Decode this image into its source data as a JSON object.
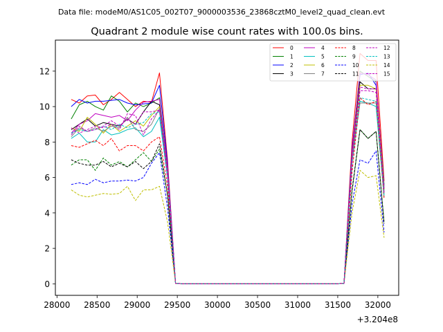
{
  "header": {
    "suptitle": "Data file: modeM0/AS1C05_002T07_9000003536_23868cztM0_level2_quad_clean.evt"
  },
  "chart_data": {
    "type": "line",
    "title": "Quadrant 2 module wise count rates with 100.0s bins.",
    "xlabel": "",
    "ylabel": "",
    "x_offset_label": "+3.204e8",
    "xlim": [
      27980,
      32260
    ],
    "ylim": [
      -0.65,
      13.75
    ],
    "xticks": [
      28000,
      28500,
      29000,
      29500,
      30000,
      30500,
      31000,
      31500,
      32000
    ],
    "yticks": [
      0,
      2,
      4,
      6,
      8,
      10,
      12
    ],
    "grid": false,
    "legend_position": "top-right",
    "legend_columns": 4,
    "x": [
      28178,
      28278,
      28378,
      28478,
      28578,
      28678,
      28778,
      28878,
      28978,
      29078,
      29178,
      29278,
      29378,
      29478,
      29578,
      29678,
      29778,
      29878,
      29978,
      30078,
      30178,
      30278,
      30378,
      30478,
      30578,
      30678,
      30778,
      30878,
      30978,
      31078,
      31178,
      31278,
      31378,
      31478,
      31578,
      31678,
      31778,
      31878,
      31978,
      32078
    ],
    "series": [
      {
        "name": "0",
        "color": "#ff0000",
        "dash": "solid",
        "values": [
          10.4,
          10.2,
          10.6,
          10.65,
          10.1,
          10.4,
          10.8,
          10.4,
          10.0,
          10.3,
          10.25,
          11.9,
          7.0,
          0.03,
          0,
          0,
          0,
          0,
          0,
          0,
          0,
          0,
          0,
          0,
          0,
          0,
          0,
          0,
          0,
          0,
          0,
          0,
          0,
          0,
          0.03,
          8.0,
          13.0,
          12.6,
          12.6,
          5.8
        ]
      },
      {
        "name": "1",
        "color": "#008000",
        "dash": "solid",
        "values": [
          9.3,
          10.1,
          10.3,
          10.0,
          9.8,
          10.6,
          10.3,
          9.7,
          10.2,
          10.0,
          10.2,
          10.5,
          6.5,
          0.03,
          0,
          0,
          0,
          0,
          0,
          0,
          0,
          0,
          0,
          0,
          0,
          0,
          0,
          0,
          0,
          0,
          0,
          0,
          0,
          0,
          0.03,
          7.5,
          12.0,
          11.7,
          11.4,
          5.6
        ]
      },
      {
        "name": "2",
        "color": "#0000ff",
        "dash": "solid",
        "values": [
          10.0,
          10.4,
          10.2,
          10.3,
          10.3,
          10.35,
          10.4,
          10.2,
          10.1,
          10.15,
          10.2,
          11.2,
          6.8,
          0.03,
          0,
          0,
          0,
          0,
          0,
          0,
          0,
          0,
          0,
          0,
          0,
          0,
          0,
          0,
          0,
          0,
          0,
          0,
          0,
          0,
          0.03,
          7.6,
          11.8,
          11.9,
          11.2,
          5.5
        ]
      },
      {
        "name": "3",
        "color": "#000000",
        "dash": "solid",
        "values": [
          8.7,
          9.0,
          9.3,
          8.9,
          9.1,
          9.0,
          8.9,
          9.3,
          9.0,
          9.7,
          10.3,
          10.1,
          6.4,
          0.03,
          0,
          0,
          0,
          0,
          0,
          0,
          0,
          0,
          0,
          0,
          0,
          0,
          0,
          0,
          0,
          0,
          0,
          0,
          0,
          0,
          0.03,
          7.2,
          11.4,
          11.0,
          11.0,
          5.3
        ]
      },
      {
        "name": "4",
        "color": "#bf00bf",
        "dash": "solid",
        "values": [
          8.5,
          9.0,
          9.2,
          9.6,
          9.5,
          9.4,
          9.5,
          9.2,
          9.8,
          10.25,
          10.3,
          10.4,
          6.6,
          0.03,
          0,
          0,
          0,
          0,
          0,
          0,
          0,
          0,
          0,
          0,
          0,
          0,
          0,
          0,
          0,
          0,
          0,
          0,
          0,
          0,
          0.03,
          7.4,
          11.9,
          11.8,
          11.5,
          5.4
        ]
      },
      {
        "name": "5",
        "color": "#00bfbf",
        "dash": "solid",
        "values": [
          8.2,
          8.5,
          8.0,
          8.0,
          8.7,
          8.4,
          8.5,
          8.7,
          8.8,
          8.3,
          8.6,
          9.4,
          6.0,
          0.03,
          0,
          0,
          0,
          0,
          0,
          0,
          0,
          0,
          0,
          0,
          0,
          0,
          0,
          0,
          0,
          0,
          0,
          0,
          0,
          0,
          0.03,
          6.9,
          10.3,
          10.2,
          10.0,
          4.9
        ]
      },
      {
        "name": "6",
        "color": "#bfbf00",
        "dash": "solid",
        "values": [
          8.8,
          8.6,
          9.4,
          9.0,
          8.5,
          9.0,
          8.6,
          8.9,
          9.2,
          8.9,
          9.5,
          10.0,
          6.3,
          0.03,
          0,
          0,
          0,
          0,
          0,
          0,
          0,
          0,
          0,
          0,
          0,
          0,
          0,
          0,
          0,
          0,
          0,
          0,
          0,
          0,
          0.03,
          7.1,
          11.2,
          11.2,
          11.0,
          5.3
        ]
      },
      {
        "name": "7",
        "color": "#808080",
        "dash": "solid",
        "values": [
          8.3,
          8.8,
          8.6,
          8.8,
          8.6,
          8.9,
          8.8,
          9.4,
          8.7,
          8.6,
          9.0,
          9.9,
          6.2,
          0.03,
          0,
          0,
          0,
          0,
          0,
          0,
          0,
          0,
          0,
          0,
          0,
          0,
          0,
          0,
          0,
          0,
          0,
          0,
          0,
          0,
          0.03,
          7.0,
          10.2,
          10.2,
          10.2,
          5.1
        ]
      },
      {
        "name": "8",
        "color": "#ff0000",
        "dash": "dashed",
        "values": [
          7.8,
          7.7,
          7.9,
          8.1,
          7.8,
          8.2,
          7.5,
          7.8,
          7.8,
          7.5,
          8.0,
          8.3,
          5.5,
          0.03,
          0,
          0,
          0,
          0,
          0,
          0,
          0,
          0,
          0,
          0,
          0,
          0,
          0,
          0,
          0,
          0,
          0,
          0,
          0,
          0,
          0.03,
          6.3,
          10.5,
          10.1,
          10.3,
          4.8
        ]
      },
      {
        "name": "9",
        "color": "#008000",
        "dash": "dashed",
        "values": [
          6.7,
          7.0,
          7.0,
          6.4,
          7.1,
          6.7,
          6.9,
          6.6,
          7.0,
          7.4,
          6.9,
          7.6,
          5.0,
          0.03,
          0,
          0,
          0,
          0,
          0,
          0,
          0,
          0,
          0,
          0,
          0,
          0,
          0,
          0,
          0,
          0,
          0,
          0,
          0,
          0,
          0.03,
          5.2,
          8.7,
          8.2,
          8.6,
          3.5
        ]
      },
      {
        "name": "10",
        "color": "#0000ff",
        "dash": "dashed",
        "values": [
          5.6,
          5.7,
          5.6,
          5.9,
          5.7,
          5.8,
          5.8,
          5.85,
          5.8,
          6.0,
          6.8,
          7.4,
          4.3,
          0.03,
          0,
          0,
          0,
          0,
          0,
          0,
          0,
          0,
          0,
          0,
          0,
          0,
          0,
          0,
          0,
          0,
          0,
          0,
          0,
          0,
          0.03,
          4.5,
          7.0,
          6.8,
          7.5,
          2.9
        ]
      },
      {
        "name": "11",
        "color": "#000000",
        "dash": "dashed",
        "values": [
          7.0,
          6.8,
          6.7,
          6.7,
          6.9,
          6.6,
          6.8,
          6.6,
          6.9,
          6.5,
          6.9,
          7.9,
          5.0,
          0.03,
          0,
          0,
          0,
          0,
          0,
          0,
          0,
          0,
          0,
          0,
          0,
          0,
          0,
          0,
          0,
          0,
          0,
          0,
          0,
          0,
          0.03,
          5.3,
          8.7,
          8.2,
          8.6,
          3.4
        ]
      },
      {
        "name": "12",
        "color": "#bf00bf",
        "dash": "dashed",
        "values": [
          8.8,
          8.5,
          8.7,
          8.9,
          8.8,
          9.0,
          8.7,
          9.6,
          9.5,
          8.4,
          9.3,
          9.8,
          6.0,
          0.03,
          0,
          0,
          0,
          0,
          0,
          0,
          0,
          0,
          0,
          0,
          0,
          0,
          0,
          0,
          0,
          0,
          0,
          0,
          0,
          0,
          0.03,
          6.9,
          10.9,
          10.9,
          10.8,
          5.1
        ]
      },
      {
        "name": "13",
        "color": "#00bfbf",
        "dash": "dashed",
        "values": [
          8.5,
          8.7,
          8.6,
          8.7,
          8.9,
          8.7,
          9.0,
          8.8,
          9.0,
          9.1,
          9.6,
          9.7,
          6.1,
          0.03,
          0,
          0,
          0,
          0,
          0,
          0,
          0,
          0,
          0,
          0,
          0,
          0,
          0,
          0,
          0,
          0,
          0,
          0,
          0,
          0,
          0.03,
          6.8,
          10.5,
          10.4,
          10.3,
          5.0
        ]
      },
      {
        "name": "14",
        "color": "#bfbf00",
        "dash": "dashed",
        "values": [
          5.3,
          5.0,
          4.9,
          5.0,
          5.1,
          5.05,
          5.1,
          5.5,
          4.7,
          5.3,
          5.3,
          5.5,
          3.5,
          0.03,
          0,
          0,
          0,
          0,
          0,
          0,
          0,
          0,
          0,
          0,
          0,
          0,
          0,
          0,
          0,
          0,
          0,
          0,
          0,
          0,
          0.03,
          4.0,
          6.4,
          6.0,
          6.1,
          2.6
        ]
      },
      {
        "name": "15",
        "color": "#bf00bf",
        "dash": "dashed",
        "values": [
          8.4,
          8.9,
          8.6,
          8.7,
          8.9,
          9.2,
          8.9,
          9.3,
          9.0,
          9.7,
          9.7,
          9.8,
          6.2,
          0.03,
          0,
          0,
          0,
          0,
          0,
          0,
          0,
          0,
          0,
          0,
          0,
          0,
          0,
          0,
          0,
          0,
          0,
          0,
          0,
          0,
          0.03,
          7.0,
          11.1,
          11.0,
          11.0,
          5.2
        ]
      }
    ]
  }
}
